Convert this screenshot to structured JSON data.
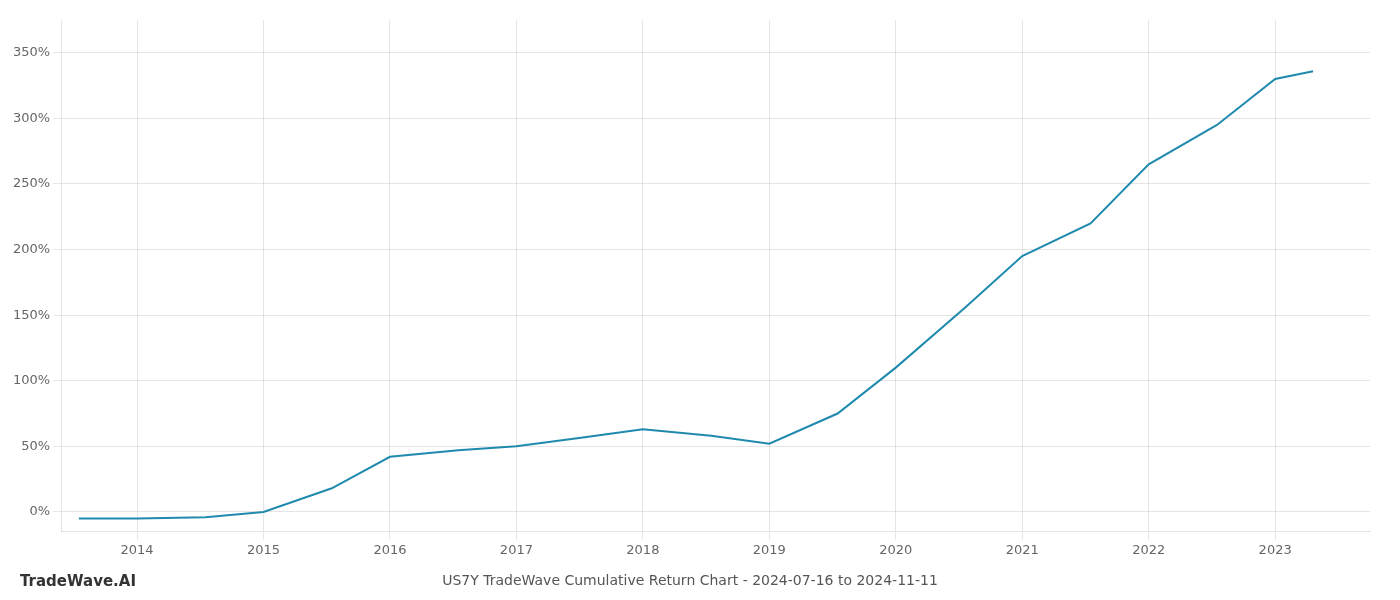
{
  "chart_data": {
    "type": "line",
    "title": "US7Y TradeWave Cumulative Return Chart - 2024-07-16 to 2024-11-11",
    "annotations": [
      "TradeWave.AI"
    ],
    "x": [
      2013.54,
      2014.0,
      2014.54,
      2015.0,
      2015.54,
      2016.0,
      2016.54,
      2017.0,
      2017.54,
      2018.0,
      2018.54,
      2019.0,
      2019.54,
      2020.0,
      2020.54,
      2021.0,
      2021.54,
      2022.0,
      2022.54,
      2023.0,
      2023.3
    ],
    "values": [
      -5,
      -5,
      -4,
      0,
      18,
      42,
      47,
      50,
      57,
      63,
      58,
      52,
      75,
      110,
      155,
      195,
      220,
      265,
      295,
      330,
      336
    ],
    "color": "#1f8aad",
    "xlim": [
      2013.4,
      2023.75
    ],
    "ylim": [
      -15,
      375
    ],
    "xticks": [
      2014,
      2015,
      2016,
      2017,
      2018,
      2019,
      2020,
      2021,
      2022,
      2023
    ],
    "yticks": [
      {
        "value": 0,
        "label": "0%"
      },
      {
        "value": 50,
        "label": "50%"
      },
      {
        "value": 100,
        "label": "100%"
      },
      {
        "value": 150,
        "label": "150%"
      },
      {
        "value": 200,
        "label": "200%"
      },
      {
        "value": 250,
        "label": "250%"
      },
      {
        "value": 300,
        "label": "300%"
      },
      {
        "value": 350,
        "label": "350%"
      }
    ],
    "grid": true
  }
}
